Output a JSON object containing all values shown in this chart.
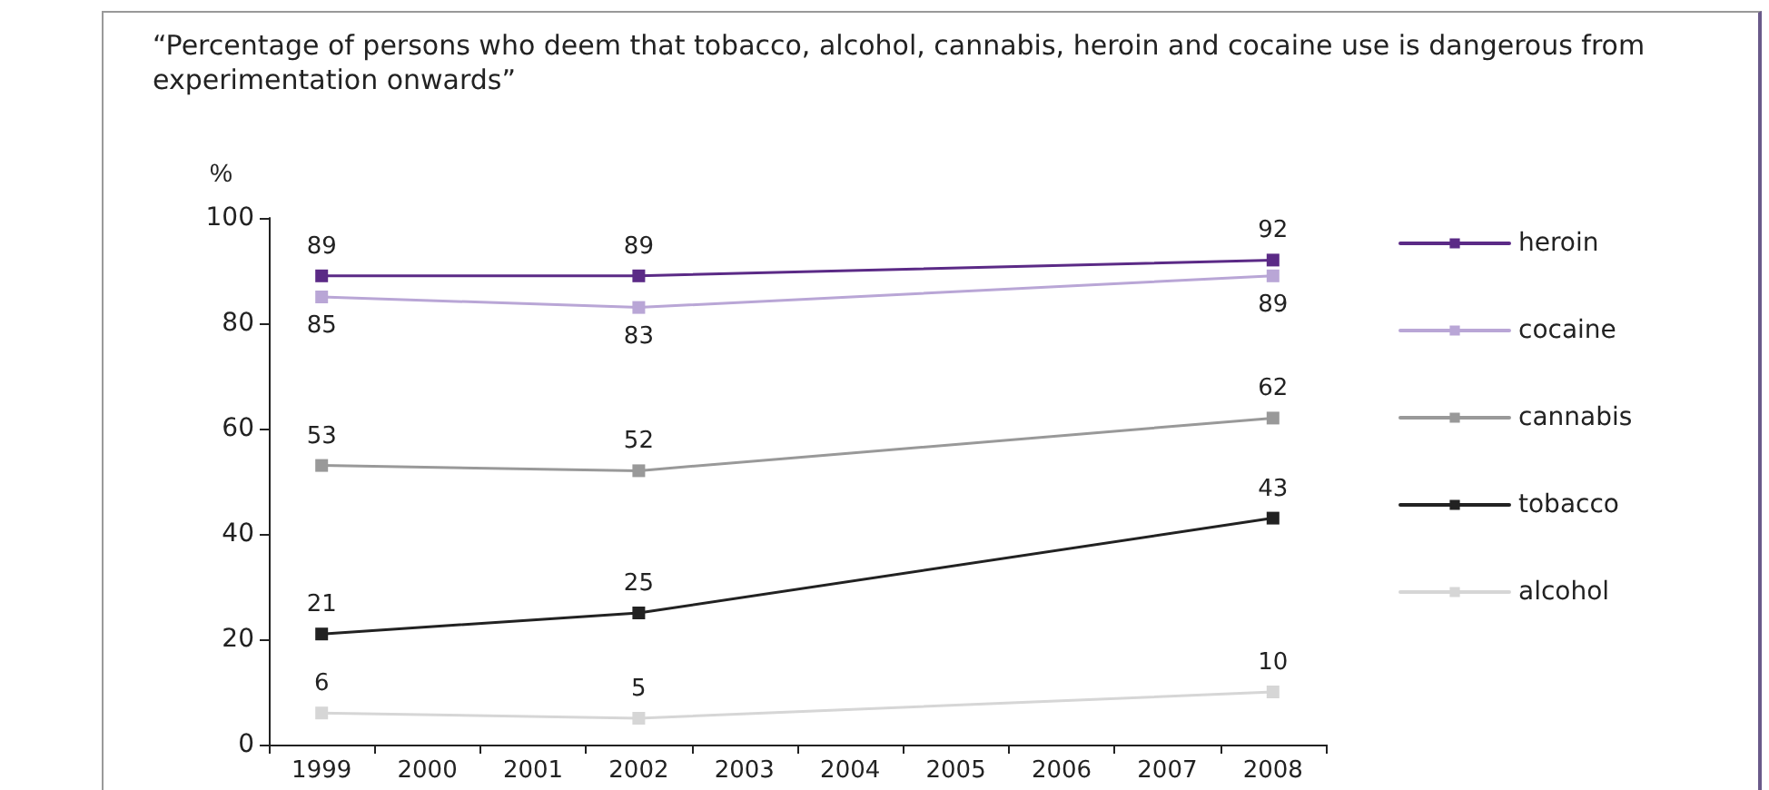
{
  "chart_data": {
    "type": "line",
    "title": "“Percentage of persons who deem that tobacco, alcohol, cannabis, heroin and cocaine use is dangerous from experimentation onwards”",
    "ylabel": "%",
    "categories": [
      "1999",
      "2000",
      "2001",
      "2002",
      "2003",
      "2004",
      "2005",
      "2006",
      "2007",
      "2008"
    ],
    "series": [
      {
        "name": "heroin",
        "color": "#5b2a86",
        "values": [
          89,
          null,
          null,
          89,
          null,
          null,
          null,
          null,
          null,
          92
        ]
      },
      {
        "name": "cocaine",
        "color": "#b9a6d6",
        "values": [
          85,
          null,
          null,
          83,
          null,
          null,
          null,
          null,
          null,
          89
        ]
      },
      {
        "name": "cannabis",
        "color": "#999999",
        "values": [
          53,
          null,
          null,
          52,
          null,
          null,
          null,
          null,
          null,
          62
        ]
      },
      {
        "name": "tobacco",
        "color": "#222222",
        "values": [
          21,
          null,
          null,
          25,
          null,
          null,
          null,
          null,
          null,
          43
        ]
      },
      {
        "name": "alcohol",
        "color": "#d6d6d6",
        "values": [
          6,
          null,
          null,
          5,
          null,
          null,
          null,
          null,
          null,
          10
        ]
      }
    ],
    "ylim": [
      0,
      100
    ],
    "yticks": [
      0,
      20,
      40,
      60,
      80,
      100
    ],
    "grid": false,
    "legend": "right",
    "marker": "square",
    "line_style": "solid",
    "data_labels": true
  }
}
